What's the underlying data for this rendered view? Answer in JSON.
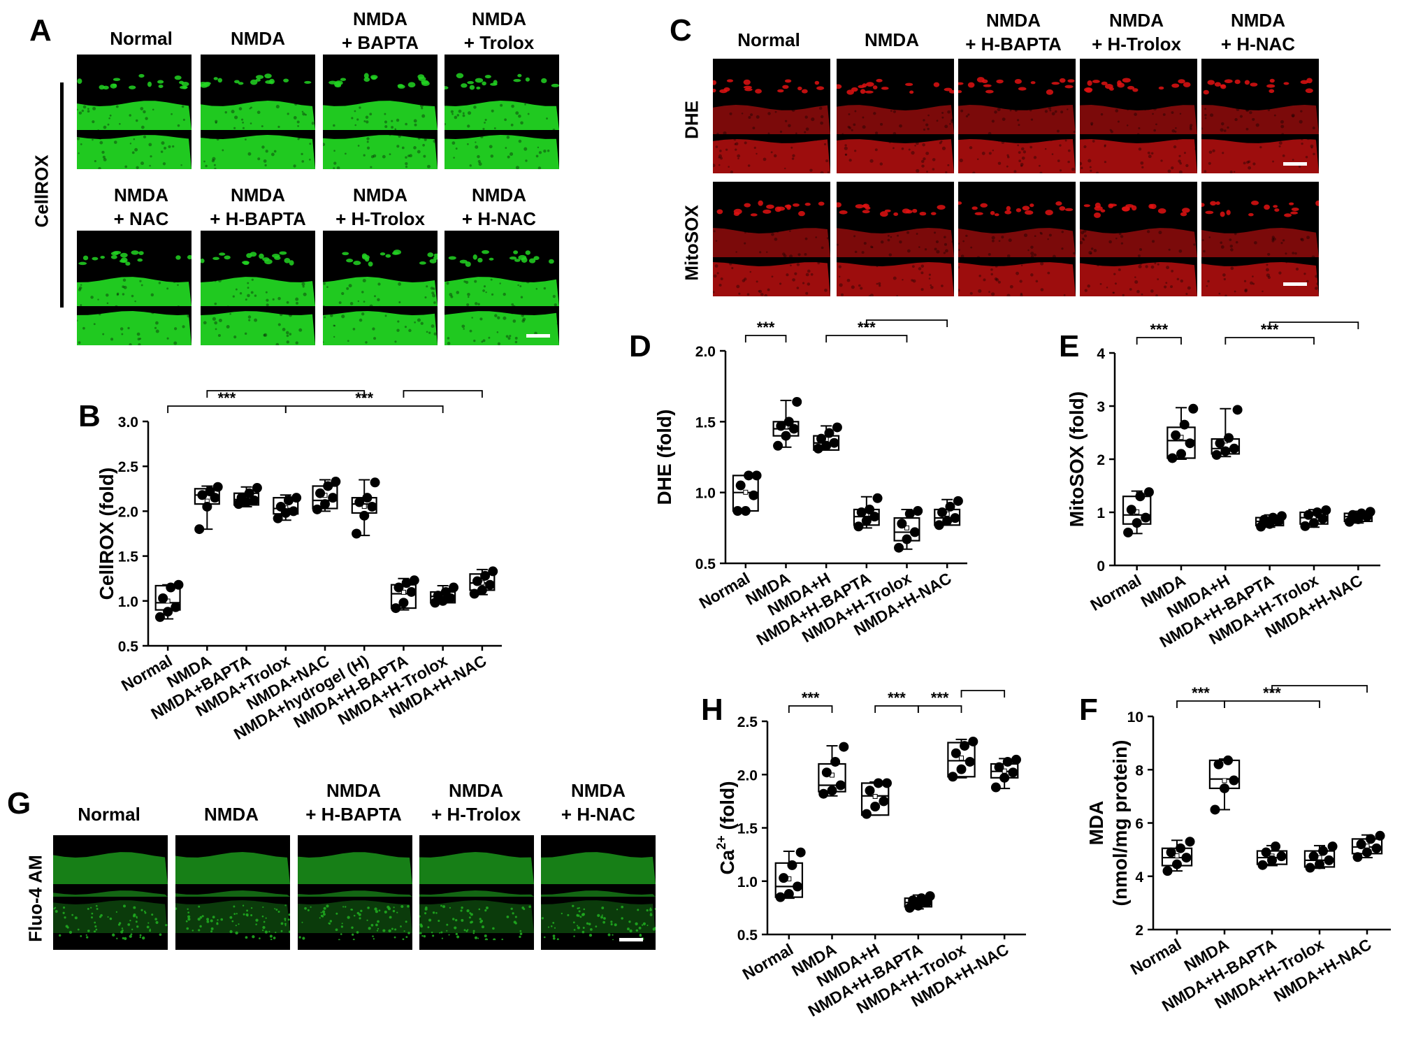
{
  "panels": {
    "A": {
      "label": "A",
      "row_label": "CellROX",
      "titles_row1": [
        "Normal",
        "NMDA",
        "NMDA\n+ BAPTA",
        "NMDA\n+ Trolox"
      ],
      "titles_row2": [
        "NMDA\n+ NAC",
        "NMDA\n+ H-BAPTA",
        "NMDA\n+ H-Trolox",
        "NMDA\n+ H-NAC"
      ],
      "stain_color": "#22d422"
    },
    "C": {
      "label": "C",
      "titles": [
        "Normal",
        "NMDA",
        "NMDA\n+ H-BAPTA",
        "NMDA\n+ H-Trolox",
        "NMDA\n+ H-NAC"
      ],
      "row_labels": [
        "DHE",
        "MitoSOX"
      ],
      "stain_color": "#e01212"
    },
    "G": {
      "label": "G",
      "titles": [
        "Normal",
        "NMDA",
        "NMDA\n+ H-BAPTA",
        "NMDA\n+ H-Trolox",
        "NMDA\n+ H-NAC"
      ],
      "row_label": "Fluo-4 AM",
      "stain_color": "#1faa1f"
    }
  },
  "chart_data": [
    {
      "id": "B",
      "label": "B",
      "type": "box",
      "ylabel": "CellROX (fold)",
      "ylim": [
        0.5,
        3.0
      ],
      "yticks": [
        "0.5",
        "1.0",
        "1.5",
        "2.0",
        "2.5",
        "3.0"
      ],
      "categories": [
        "Normal",
        "NMDA",
        "NMDA+BAPTA",
        "NMDA+Trolox",
        "NMDA+NAC",
        "NMDA+hydrogel (H)",
        "NMDA+H-BAPTA",
        "NMDA+H-Trolox",
        "NMDA+H-NAC"
      ],
      "boxes": [
        {
          "q1": 0.9,
          "median": 0.98,
          "q3": 1.17,
          "min": 0.8,
          "max": 1.18,
          "points": [
            0.82,
            0.88,
            0.93,
            1.03,
            1.15,
            1.18
          ]
        },
        {
          "q1": 2.08,
          "median": 2.18,
          "q3": 2.25,
          "min": 1.8,
          "max": 2.28,
          "points": [
            1.8,
            2.05,
            2.15,
            2.18,
            2.22,
            2.27
          ]
        },
        {
          "q1": 2.07,
          "median": 2.13,
          "q3": 2.2,
          "min": 2.05,
          "max": 2.27,
          "points": [
            2.08,
            2.1,
            2.12,
            2.15,
            2.2,
            2.26
          ]
        },
        {
          "q1": 1.97,
          "median": 2.03,
          "q3": 2.15,
          "min": 1.9,
          "max": 2.18,
          "points": [
            1.92,
            1.98,
            2.0,
            2.05,
            2.12,
            2.15
          ]
        },
        {
          "q1": 2.03,
          "median": 2.12,
          "q3": 2.28,
          "min": 2.0,
          "max": 2.35,
          "points": [
            2.02,
            2.08,
            2.15,
            2.2,
            2.28,
            2.33
          ]
        },
        {
          "q1": 1.98,
          "median": 2.08,
          "q3": 2.15,
          "min": 1.73,
          "max": 2.35,
          "points": [
            1.75,
            1.95,
            2.05,
            2.1,
            2.15,
            2.32
          ]
        },
        {
          "q1": 0.92,
          "median": 1.08,
          "q3": 1.18,
          "min": 0.9,
          "max": 1.25,
          "points": [
            0.92,
            0.98,
            1.1,
            1.15,
            1.2,
            1.23
          ]
        },
        {
          "q1": 0.98,
          "median": 1.05,
          "q3": 1.1,
          "min": 0.98,
          "max": 1.17,
          "points": [
            0.98,
            1.0,
            1.03,
            1.06,
            1.1,
            1.15
          ]
        },
        {
          "q1": 1.12,
          "median": 1.2,
          "q3": 1.3,
          "min": 1.07,
          "max": 1.35,
          "points": [
            1.08,
            1.12,
            1.18,
            1.22,
            1.28,
            1.33
          ]
        }
      ],
      "brackets": [
        {
          "from": 0,
          "to": 3,
          "level": 0,
          "label": "***"
        },
        {
          "from": 3,
          "to": 7,
          "level": 0,
          "label": "***"
        },
        {
          "from": 1,
          "to": 5,
          "level": 1,
          "label": ""
        },
        {
          "from": 6,
          "to": 8,
          "level": 1,
          "label": ""
        }
      ]
    },
    {
      "id": "D",
      "label": "D",
      "type": "box",
      "ylabel": "DHE (fold)",
      "ylim": [
        0.5,
        2.0
      ],
      "yticks": [
        "0.5",
        "1.0",
        "1.5",
        "2.0"
      ],
      "categories": [
        "Normal",
        "NMDA",
        "NMDA+H",
        "NMDA+H-BAPTA",
        "NMDA+H-Trolox",
        "NMDA+H-NAC"
      ],
      "boxes": [
        {
          "q1": 0.87,
          "median": 1.0,
          "q3": 1.12,
          "min": 0.87,
          "max": 1.12,
          "points": [
            0.87,
            0.87,
            0.98,
            1.05,
            1.12,
            1.12
          ]
        },
        {
          "q1": 1.4,
          "median": 1.45,
          "q3": 1.5,
          "min": 1.32,
          "max": 1.65,
          "points": [
            1.33,
            1.4,
            1.45,
            1.47,
            1.5,
            1.64
          ]
        },
        {
          "q1": 1.3,
          "median": 1.35,
          "q3": 1.4,
          "min": 1.3,
          "max": 1.47,
          "points": [
            1.31,
            1.33,
            1.35,
            1.38,
            1.42,
            1.46
          ]
        },
        {
          "q1": 0.77,
          "median": 0.83,
          "q3": 0.88,
          "min": 0.75,
          "max": 0.97,
          "points": [
            0.76,
            0.8,
            0.83,
            0.86,
            0.88,
            0.96
          ]
        },
        {
          "q1": 0.66,
          "median": 0.72,
          "q3": 0.82,
          "min": 0.6,
          "max": 0.88,
          "points": [
            0.61,
            0.67,
            0.72,
            0.78,
            0.85,
            0.87
          ]
        },
        {
          "q1": 0.77,
          "median": 0.82,
          "q3": 0.88,
          "min": 0.77,
          "max": 0.95,
          "points": [
            0.77,
            0.8,
            0.82,
            0.86,
            0.9,
            0.94
          ]
        }
      ],
      "brackets": [
        {
          "from": 0,
          "to": 1,
          "level": 0,
          "label": "***"
        },
        {
          "from": 2,
          "to": 4,
          "level": 0,
          "label": "***"
        },
        {
          "from": 3,
          "to": 5,
          "level": 1,
          "label": ""
        }
      ]
    },
    {
      "id": "E",
      "label": "E",
      "type": "box",
      "ylabel": "MitoSOX (fold)",
      "ylim": [
        0,
        4
      ],
      "yticks": [
        "0",
        "1",
        "2",
        "3",
        "4"
      ],
      "categories": [
        "Normal",
        "NMDA",
        "NMDA+H",
        "NMDA+H-BAPTA",
        "NMDA+H-Trolox",
        "NMDA+H-NAC"
      ],
      "boxes": [
        {
          "q1": 0.78,
          "median": 0.95,
          "q3": 1.3,
          "min": 0.6,
          "max": 1.4,
          "points": [
            0.62,
            0.8,
            0.9,
            1.05,
            1.3,
            1.38
          ]
        },
        {
          "q1": 2.02,
          "median": 2.35,
          "q3": 2.6,
          "min": 2.0,
          "max": 2.97,
          "points": [
            2.02,
            2.1,
            2.3,
            2.45,
            2.65,
            2.95
          ]
        },
        {
          "q1": 2.1,
          "median": 2.2,
          "q3": 2.38,
          "min": 2.05,
          "max": 2.95,
          "points": [
            2.08,
            2.15,
            2.2,
            2.3,
            2.4,
            2.93
          ]
        },
        {
          "q1": 0.75,
          "median": 0.83,
          "q3": 0.9,
          "min": 0.72,
          "max": 0.95,
          "points": [
            0.73,
            0.78,
            0.83,
            0.86,
            0.9,
            0.93
          ]
        },
        {
          "q1": 0.78,
          "median": 0.9,
          "q3": 1.0,
          "min": 0.72,
          "max": 1.05,
          "points": [
            0.74,
            0.8,
            0.88,
            0.95,
            1.0,
            1.04
          ]
        },
        {
          "q1": 0.83,
          "median": 0.92,
          "q3": 0.98,
          "min": 0.8,
          "max": 1.02,
          "points": [
            0.82,
            0.87,
            0.92,
            0.95,
            0.98,
            1.01
          ]
        }
      ],
      "brackets": [
        {
          "from": 0,
          "to": 1,
          "level": 0,
          "label": "***"
        },
        {
          "from": 2,
          "to": 4,
          "level": 0,
          "label": "***"
        },
        {
          "from": 3,
          "to": 5,
          "level": 1,
          "label": ""
        }
      ]
    },
    {
      "id": "H",
      "label": "H",
      "type": "box",
      "ylabel": "Ca",
      "ylabel_sup": "2+",
      "ylabel_suffix": " (fold)",
      "ylim": [
        0.5,
        2.5
      ],
      "yticks": [
        "0.5",
        "1.0",
        "1.5",
        "2.0",
        "2.5"
      ],
      "categories": [
        "Normal",
        "NMDA",
        "NMDA+H",
        "NMDA+H-BAPTA",
        "NMDA+H-Trolox",
        "NMDA+H-NAC"
      ],
      "boxes": [
        {
          "q1": 0.85,
          "median": 0.95,
          "q3": 1.17,
          "min": 0.84,
          "max": 1.28,
          "points": [
            0.85,
            0.88,
            0.95,
            1.03,
            1.15,
            1.27
          ]
        },
        {
          "q1": 1.84,
          "median": 1.9,
          "q3": 2.1,
          "min": 1.8,
          "max": 2.27,
          "points": [
            1.82,
            1.85,
            1.9,
            2.02,
            2.12,
            2.26
          ]
        },
        {
          "q1": 1.62,
          "median": 1.8,
          "q3": 1.92,
          "min": 1.62,
          "max": 1.93,
          "points": [
            1.63,
            1.7,
            1.75,
            1.85,
            1.92,
            1.92
          ]
        },
        {
          "q1": 0.76,
          "median": 0.8,
          "q3": 0.84,
          "min": 0.74,
          "max": 0.87,
          "points": [
            0.75,
            0.77,
            0.8,
            0.82,
            0.84,
            0.86
          ]
        },
        {
          "q1": 1.98,
          "median": 2.13,
          "q3": 2.3,
          "min": 1.97,
          "max": 2.33,
          "points": [
            1.98,
            2.05,
            2.12,
            2.2,
            2.27,
            2.31
          ]
        },
        {
          "q1": 1.97,
          "median": 2.03,
          "q3": 2.1,
          "min": 1.87,
          "max": 2.15,
          "points": [
            1.88,
            1.97,
            2.02,
            2.07,
            2.12,
            2.14
          ]
        }
      ],
      "brackets": [
        {
          "from": 0,
          "to": 1,
          "level": 0,
          "label": "***"
        },
        {
          "from": 2,
          "to": 3,
          "level": 0,
          "label": "***"
        },
        {
          "from": 3,
          "to": 4,
          "level": 0,
          "label": "***"
        },
        {
          "from": 4,
          "to": 5,
          "level": 1,
          "label": ""
        }
      ]
    },
    {
      "id": "F",
      "label": "F",
      "type": "box",
      "ylabel": "MDA",
      "ylabel2": "(nmol/mg protein)",
      "ylim": [
        2,
        10
      ],
      "yticks": [
        "2",
        "4",
        "6",
        "8",
        "10"
      ],
      "categories": [
        "Normal",
        "NMDA",
        "NMDA+H-BAPTA",
        "NMDA+H-Trolox",
        "NMDA+H-NAC"
      ],
      "boxes": [
        {
          "q1": 4.4,
          "median": 4.7,
          "q3": 5.05,
          "min": 4.2,
          "max": 5.35,
          "points": [
            4.2,
            4.45,
            4.7,
            4.9,
            5.05,
            5.3
          ]
        },
        {
          "q1": 7.3,
          "median": 7.65,
          "q3": 8.35,
          "min": 6.5,
          "max": 8.4,
          "points": [
            6.5,
            7.3,
            7.6,
            8.2,
            8.35
          ]
        },
        {
          "q1": 4.45,
          "median": 4.7,
          "q3": 4.95,
          "min": 4.4,
          "max": 5.15,
          "points": [
            4.42,
            4.6,
            4.75,
            4.9,
            5.12
          ]
        },
        {
          "q1": 4.35,
          "median": 4.6,
          "q3": 4.95,
          "min": 4.3,
          "max": 5.15,
          "points": [
            4.32,
            4.45,
            4.6,
            4.75,
            4.95,
            5.12
          ]
        },
        {
          "q1": 4.85,
          "median": 5.1,
          "q3": 5.4,
          "min": 4.7,
          "max": 5.55,
          "points": [
            4.72,
            4.9,
            5.05,
            5.2,
            5.4,
            5.52
          ]
        }
      ],
      "brackets": [
        {
          "from": 0,
          "to": 1,
          "level": 0,
          "label": "***"
        },
        {
          "from": 1,
          "to": 3,
          "level": 0,
          "label": "***"
        },
        {
          "from": 2,
          "to": 4,
          "level": 1,
          "label": ""
        }
      ]
    }
  ]
}
